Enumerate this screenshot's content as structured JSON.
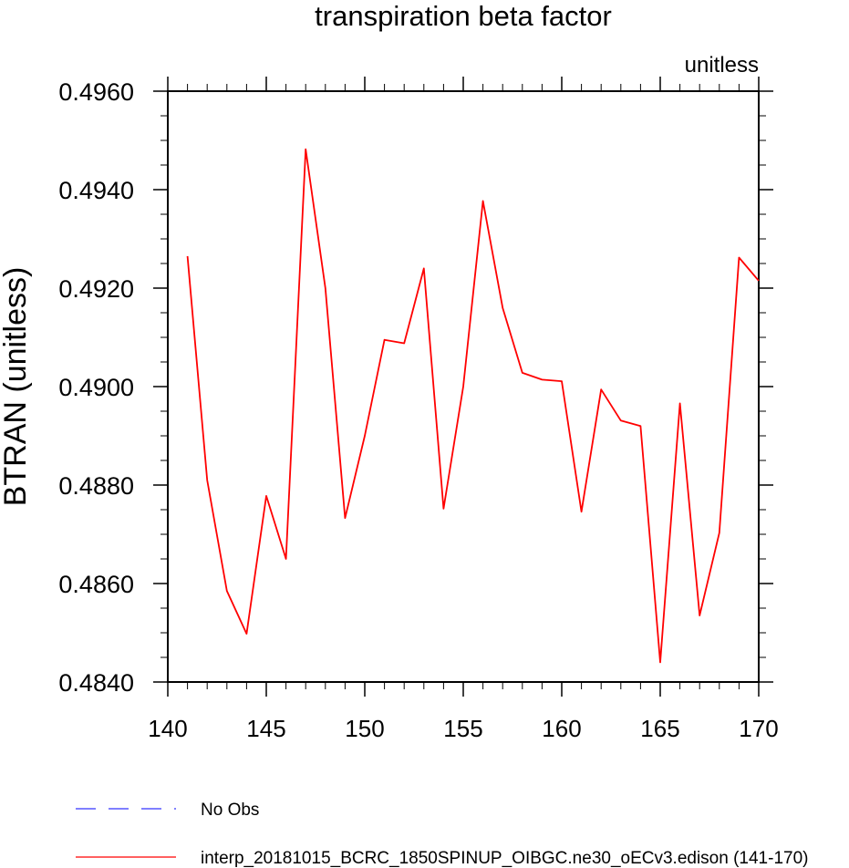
{
  "chart_data": {
    "type": "line",
    "title": "transpiration beta factor",
    "subtitle_right": "unitless",
    "xlabel": "",
    "ylabel": "BTRAN  (unitless)",
    "xlim": [
      140,
      170
    ],
    "ylim": [
      0.484,
      0.496
    ],
    "x_ticks": [
      140,
      145,
      150,
      155,
      160,
      165,
      170
    ],
    "x_tick_labels": [
      "140",
      "145",
      "150",
      "155",
      "160",
      "165",
      "170"
    ],
    "y_ticks": [
      0.484,
      0.486,
      0.488,
      0.49,
      0.492,
      0.494,
      0.496
    ],
    "y_tick_labels": [
      "0.4840",
      "0.4860",
      "0.4880",
      "0.4900",
      "0.4920",
      "0.4940",
      "0.4960"
    ],
    "grid": false,
    "legend_position": "bottom",
    "series": [
      {
        "name": "No Obs",
        "color": "#3333ff",
        "style": "dashed",
        "x": [],
        "y": []
      },
      {
        "name": "interp_20181015_BCRC_1850SPINUP_OIBGC.ne30_oECv3.edison (141-170)",
        "color": "#ff0000",
        "style": "solid",
        "x": [
          141,
          142,
          143,
          144,
          145,
          146,
          147,
          148,
          149,
          150,
          151,
          152,
          153,
          154,
          155,
          156,
          157,
          158,
          159,
          160,
          161,
          162,
          163,
          164,
          165,
          166,
          167,
          168,
          169,
          170
        ],
        "y": [
          0.49265,
          0.4881,
          0.48585,
          0.48498,
          0.48778,
          0.4865,
          0.49482,
          0.492,
          0.48733,
          0.489,
          0.49095,
          0.49088,
          0.4924,
          0.48752,
          0.49,
          0.49377,
          0.4916,
          0.49028,
          0.49014,
          0.49011,
          0.48746,
          0.48994,
          0.48931,
          0.4892,
          0.4844,
          0.48966,
          0.48535,
          0.48703,
          0.49262,
          0.49215
        ]
      }
    ]
  }
}
